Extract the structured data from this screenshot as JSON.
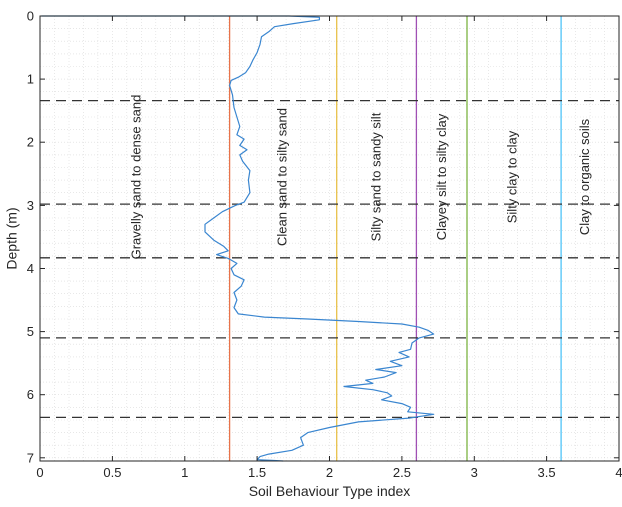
{
  "chart_data": {
    "type": "line",
    "xlabel": "Soil Behaviour Type index",
    "ylabel": "Depth (m)",
    "xlim": [
      0,
      4
    ],
    "ylim": [
      0,
      7.05
    ],
    "y_reversed": true,
    "grid": "minor dotted grid",
    "x_ticks": [
      "0",
      "0.5",
      "1",
      "1.5",
      "2",
      "2.5",
      "3",
      "3.5",
      "4"
    ],
    "y_ticks": [
      "0",
      "1",
      "2",
      "3",
      "4",
      "5",
      "6",
      "7"
    ],
    "zone_boundaries": [
      {
        "value": 1.31,
        "color": "#e8734a"
      },
      {
        "value": 2.05,
        "color": "#e8c14a"
      },
      {
        "value": 2.6,
        "color": "#a050b4"
      },
      {
        "value": 2.95,
        "color": "#7cb342"
      },
      {
        "value": 3.6,
        "color": "#4fc3f7"
      }
    ],
    "zone_labels": [
      {
        "text": "Gravelly sand to dense sand",
        "x": 0.67,
        "y": 2.55
      },
      {
        "text": "Clean sand to silty sand",
        "x": 1.68,
        "y": 2.55
      },
      {
        "text": "Silty sand to sandy silt",
        "x": 2.33,
        "y": 2.55
      },
      {
        "text": "Clayey silt to silty clay",
        "x": 2.78,
        "y": 2.55
      },
      {
        "text": "Silty clay to clay",
        "x": 3.27,
        "y": 2.55
      },
      {
        "text": "Clay to organic soils",
        "x": 3.77,
        "y": 2.55
      }
    ],
    "layer_boundaries": [
      1.34,
      2.98,
      3.83,
      5.1,
      6.36
    ],
    "series": [
      {
        "color": "#3a86d0",
        "points": [
          [
            0.01,
            0.0
          ],
          [
            1.72,
            0.0
          ],
          [
            1.93,
            0.02
          ],
          [
            1.93,
            0.06
          ],
          [
            1.75,
            0.12
          ],
          [
            1.62,
            0.17
          ],
          [
            1.58,
            0.25
          ],
          [
            1.53,
            0.33
          ],
          [
            1.52,
            0.45
          ],
          [
            1.5,
            0.58
          ],
          [
            1.47,
            0.7
          ],
          [
            1.45,
            0.8
          ],
          [
            1.42,
            0.9
          ],
          [
            1.37,
            0.97
          ],
          [
            1.32,
            1.02
          ],
          [
            1.31,
            1.1
          ],
          [
            1.33,
            1.25
          ],
          [
            1.34,
            1.45
          ],
          [
            1.36,
            1.6
          ],
          [
            1.38,
            1.75
          ],
          [
            1.36,
            1.88
          ],
          [
            1.41,
            1.95
          ],
          [
            1.38,
            2.05
          ],
          [
            1.43,
            2.12
          ],
          [
            1.38,
            2.2
          ],
          [
            1.4,
            2.3
          ],
          [
            1.45,
            2.45
          ],
          [
            1.44,
            2.6
          ],
          [
            1.45,
            2.8
          ],
          [
            1.41,
            2.95
          ],
          [
            1.35,
            3.0
          ],
          [
            1.26,
            3.1
          ],
          [
            1.2,
            3.2
          ],
          [
            1.14,
            3.3
          ],
          [
            1.14,
            3.42
          ],
          [
            1.2,
            3.55
          ],
          [
            1.27,
            3.65
          ],
          [
            1.3,
            3.72
          ],
          [
            1.22,
            3.78
          ],
          [
            1.3,
            3.84
          ],
          [
            1.36,
            3.92
          ],
          [
            1.32,
            4.0
          ],
          [
            1.34,
            4.1
          ],
          [
            1.41,
            4.18
          ],
          [
            1.39,
            4.28
          ],
          [
            1.34,
            4.38
          ],
          [
            1.36,
            4.5
          ],
          [
            1.34,
            4.62
          ],
          [
            1.37,
            4.72
          ],
          [
            1.55,
            4.77
          ],
          [
            1.85,
            4.8
          ],
          [
            2.2,
            4.84
          ],
          [
            2.5,
            4.88
          ],
          [
            2.62,
            4.93
          ],
          [
            2.68,
            4.98
          ],
          [
            2.72,
            5.04
          ],
          [
            2.62,
            5.1
          ],
          [
            2.57,
            5.18
          ],
          [
            2.56,
            5.28
          ],
          [
            2.48,
            5.33
          ],
          [
            2.55,
            5.4
          ],
          [
            2.42,
            5.47
          ],
          [
            2.5,
            5.54
          ],
          [
            2.32,
            5.6
          ],
          [
            2.46,
            5.65
          ],
          [
            2.38,
            5.72
          ],
          [
            2.25,
            5.77
          ],
          [
            2.3,
            5.82
          ],
          [
            2.1,
            5.87
          ],
          [
            2.3,
            5.92
          ],
          [
            2.4,
            5.97
          ],
          [
            2.43,
            6.02
          ],
          [
            2.36,
            6.08
          ],
          [
            2.5,
            6.14
          ],
          [
            2.56,
            6.2
          ],
          [
            2.54,
            6.27
          ],
          [
            2.72,
            6.31
          ],
          [
            2.55,
            6.37
          ],
          [
            2.2,
            6.43
          ],
          [
            2.0,
            6.52
          ],
          [
            1.85,
            6.6
          ],
          [
            1.8,
            6.68
          ],
          [
            1.82,
            6.8
          ],
          [
            1.74,
            6.88
          ],
          [
            1.58,
            6.94
          ],
          [
            1.52,
            6.98
          ],
          [
            1.5,
            7.03
          ],
          [
            1.6,
            7.04
          ],
          [
            1.68,
            7.05
          ]
        ]
      }
    ]
  }
}
